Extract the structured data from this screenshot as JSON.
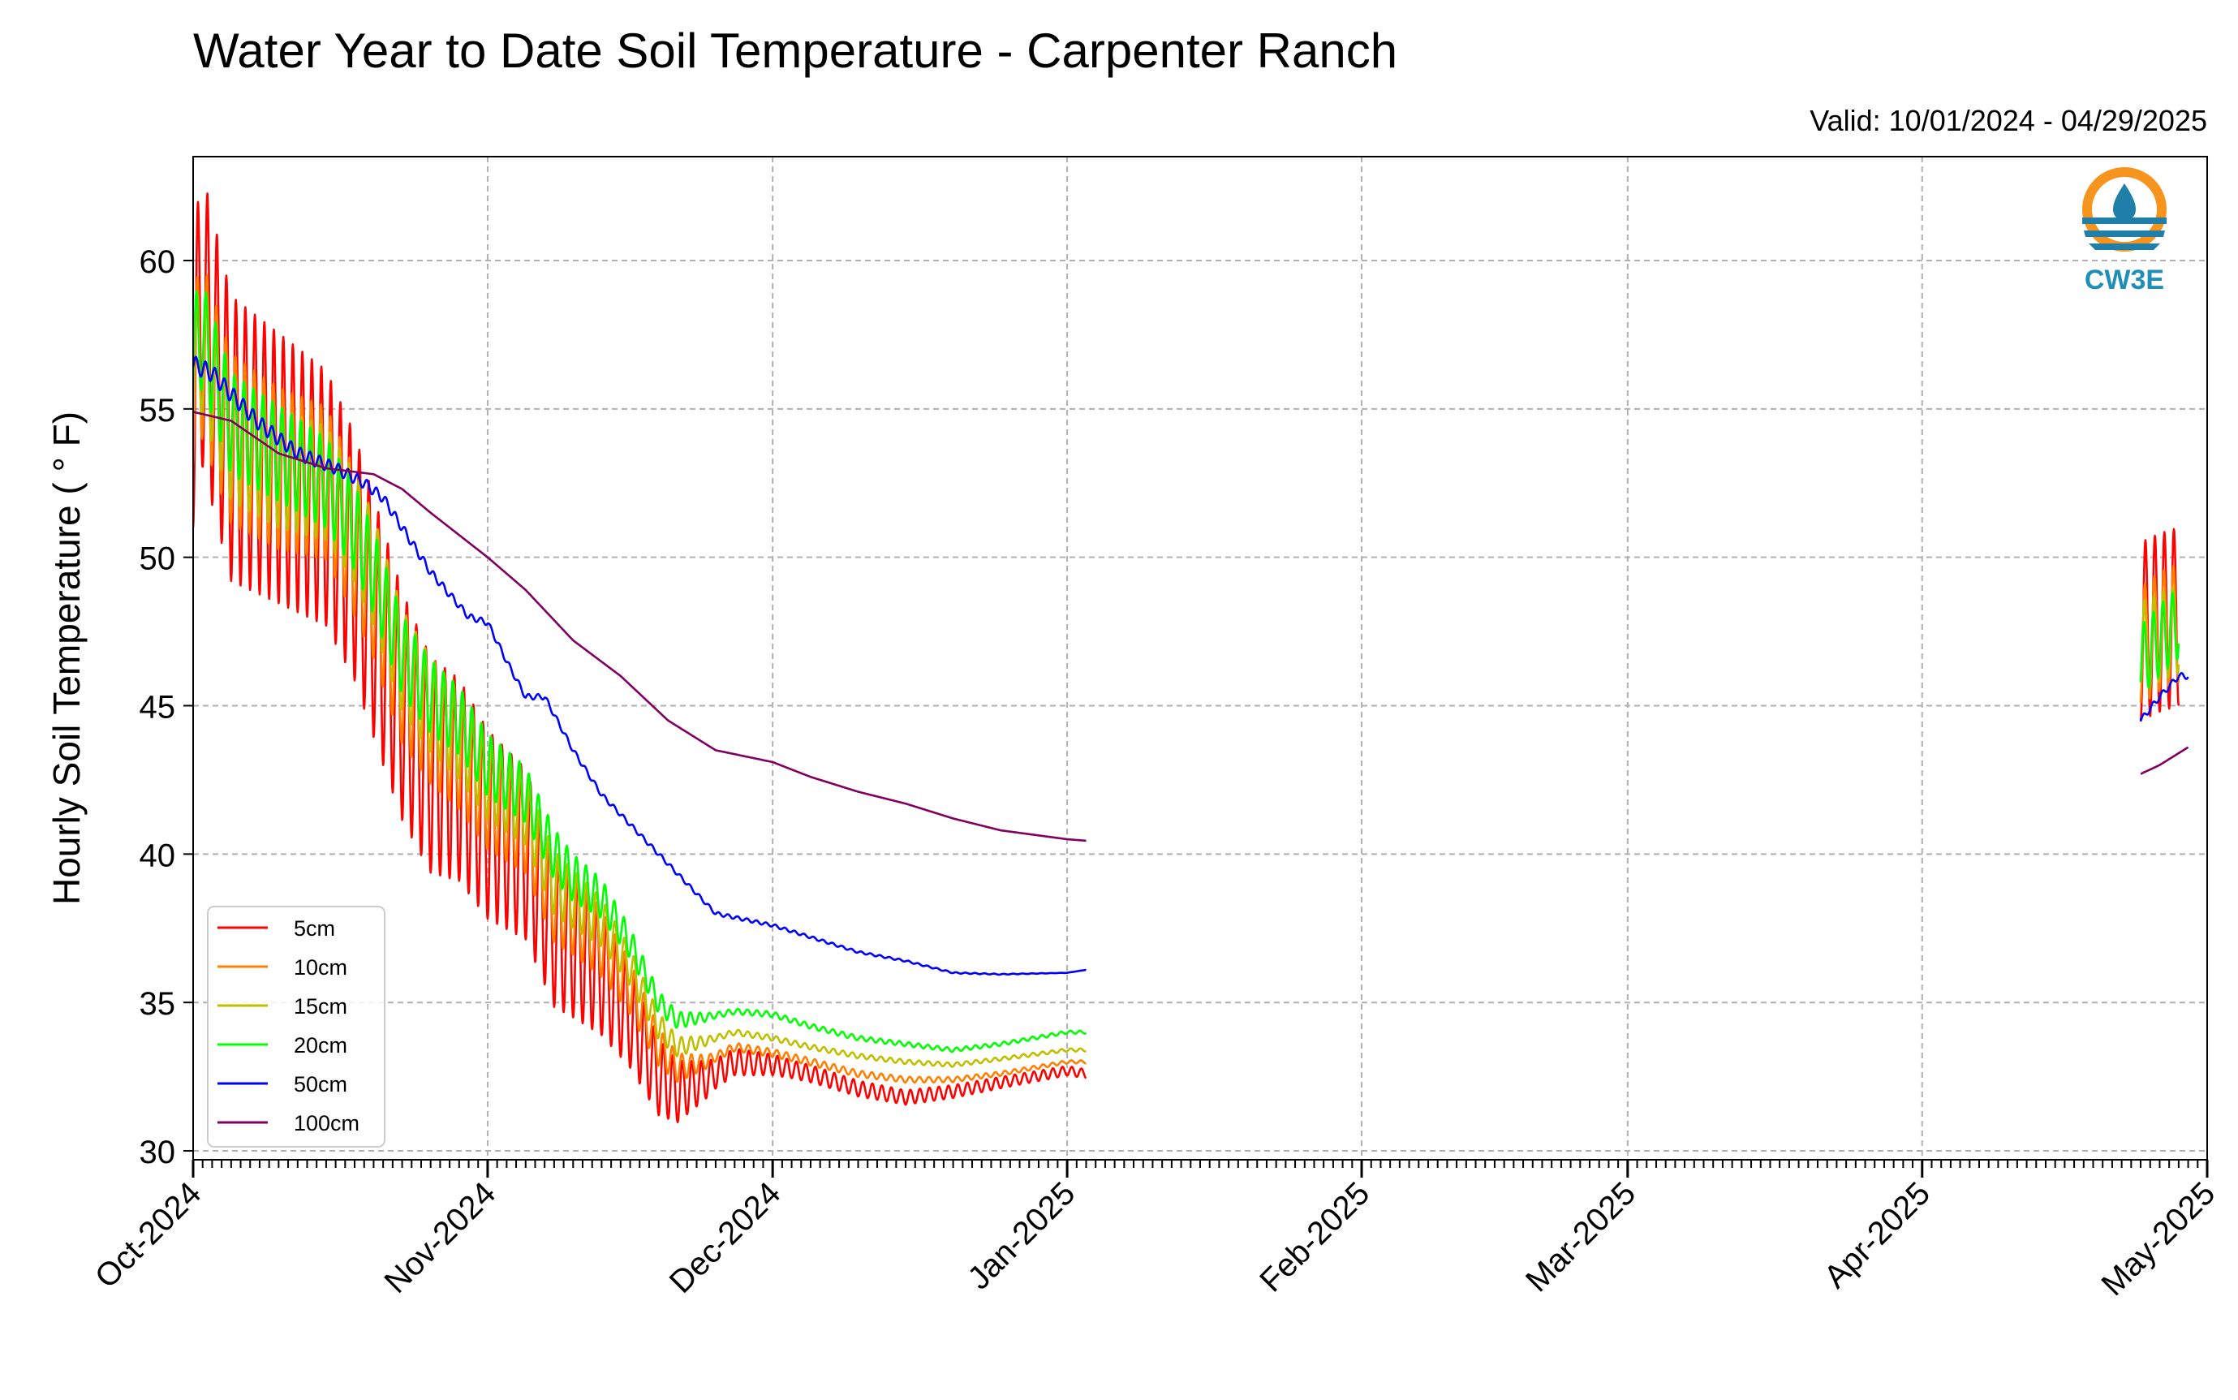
{
  "chart_data": {
    "type": "line",
    "title": "Water Year to Date Soil Temperature - Carpenter Ranch",
    "subtitle": "Valid: 10/01/2024 - 04/29/2025",
    "ylabel": "Hourly Soil Temperature ( ° F)",
    "xlabel": "",
    "ylim": [
      29.7,
      63.5
    ],
    "xlim": [
      "2024-10-01",
      "2025-05-01"
    ],
    "y_ticks": [
      30,
      35,
      40,
      45,
      50,
      55,
      60
    ],
    "x_ticks": [
      "2024-10-01",
      "2024-11-01",
      "2024-12-01",
      "2025-01-01",
      "2025-02-01",
      "2025-03-01",
      "2025-04-01",
      "2025-05-01"
    ],
    "x_tick_labels": [
      "Oct-2024",
      "Nov-2024",
      "Dec-2024",
      "Jan-2025",
      "Feb-2025",
      "Mar-2025",
      "Apr-2025",
      "May-2025"
    ],
    "grid": true,
    "legend_position": "bottom-left",
    "logo_text": "CW3E",
    "series": [
      {
        "name": "5cm",
        "color": "#ff0000",
        "points": [
          [
            "2024-10-01",
            56
          ],
          [
            "2024-10-02",
            58
          ],
          [
            "2024-10-05",
            54
          ],
          [
            "2024-10-10",
            53
          ],
          [
            "2024-10-15",
            52
          ],
          [
            "2024-10-18",
            50
          ],
          [
            "2024-10-20",
            48
          ],
          [
            "2024-10-23",
            45
          ],
          [
            "2024-10-26",
            43
          ],
          [
            "2024-10-29",
            42.5
          ],
          [
            "2024-11-01",
            41
          ],
          [
            "2024-11-03",
            40.5
          ],
          [
            "2024-11-05",
            40
          ],
          [
            "2024-11-08",
            37.5
          ],
          [
            "2024-11-10",
            37
          ],
          [
            "2024-11-13",
            36
          ],
          [
            "2024-11-16",
            34.5
          ],
          [
            "2024-11-19",
            32.5
          ],
          [
            "2024-11-21",
            32
          ],
          [
            "2024-11-24",
            32.4
          ],
          [
            "2024-11-27",
            33
          ],
          [
            "2024-12-01",
            32.9
          ],
          [
            "2024-12-05",
            32.6
          ],
          [
            "2024-12-10",
            32.1
          ],
          [
            "2024-12-15",
            31.8
          ],
          [
            "2024-12-20",
            32
          ],
          [
            "2024-12-25",
            32.3
          ],
          [
            "2025-01-01",
            32.7
          ],
          [
            "2025-01-03",
            32.6
          ]
        ],
        "amplitude": [
          [
            0,
            5
          ],
          [
            20,
            4
          ],
          [
            40,
            2.5
          ],
          [
            55,
            0.5
          ],
          [
            63,
            0.3
          ],
          [
            94,
            0.15
          ]
        ],
        "points_late": [
          [
            "2025-04-24",
            47.5
          ],
          [
            "2025-04-26",
            47.8
          ],
          [
            "2025-04-28",
            48
          ]
        ],
        "amplitude_late": 3
      },
      {
        "name": "10cm",
        "color": "#ff8000",
        "points": [
          [
            "2024-10-01",
            56
          ],
          [
            "2024-10-02",
            57
          ],
          [
            "2024-10-05",
            54
          ],
          [
            "2024-10-10",
            53
          ],
          [
            "2024-10-15",
            52.5
          ],
          [
            "2024-10-18",
            50.5
          ],
          [
            "2024-10-20",
            49
          ],
          [
            "2024-10-23",
            46
          ],
          [
            "2024-10-26",
            44.5
          ],
          [
            "2024-10-29",
            43.5
          ],
          [
            "2024-11-01",
            42
          ],
          [
            "2024-11-03",
            41.5
          ],
          [
            "2024-11-05",
            41
          ],
          [
            "2024-11-08",
            38.5
          ],
          [
            "2024-11-10",
            38
          ],
          [
            "2024-11-13",
            37
          ],
          [
            "2024-11-16",
            35.5
          ],
          [
            "2024-11-19",
            33.5
          ],
          [
            "2024-11-21",
            32.8
          ],
          [
            "2024-11-24",
            33
          ],
          [
            "2024-11-27",
            33.5
          ],
          [
            "2024-12-01",
            33.3
          ],
          [
            "2024-12-05",
            33
          ],
          [
            "2024-12-10",
            32.6
          ],
          [
            "2024-12-15",
            32.4
          ],
          [
            "2024-12-20",
            32.4
          ],
          [
            "2024-12-25",
            32.6
          ],
          [
            "2025-01-01",
            33
          ],
          [
            "2025-01-03",
            33
          ]
        ],
        "amplitude": [
          [
            0,
            3
          ],
          [
            20,
            2.4
          ],
          [
            40,
            1.4
          ],
          [
            55,
            0.15
          ],
          [
            94,
            0.05
          ]
        ],
        "points_late": [
          [
            "2025-04-24",
            47
          ],
          [
            "2025-04-26",
            47.5
          ],
          [
            "2025-04-28",
            47.8
          ]
        ],
        "amplitude_late": 2
      },
      {
        "name": "15cm",
        "color": "#bfbf00",
        "points": [
          [
            "2024-10-01",
            56.5
          ],
          [
            "2024-10-02",
            57
          ],
          [
            "2024-10-05",
            54
          ],
          [
            "2024-10-10",
            53
          ],
          [
            "2024-10-15",
            52.5
          ],
          [
            "2024-10-18",
            51
          ],
          [
            "2024-10-20",
            49.5
          ],
          [
            "2024-10-23",
            46.5
          ],
          [
            "2024-10-26",
            45
          ],
          [
            "2024-10-29",
            44
          ],
          [
            "2024-11-01",
            42.5
          ],
          [
            "2024-11-03",
            42
          ],
          [
            "2024-11-05",
            41.5
          ],
          [
            "2024-11-08",
            39
          ],
          [
            "2024-11-10",
            38.5
          ],
          [
            "2024-11-13",
            37.7
          ],
          [
            "2024-11-16",
            36.2
          ],
          [
            "2024-11-19",
            34.2
          ],
          [
            "2024-11-21",
            33.5
          ],
          [
            "2024-11-24",
            33.7
          ],
          [
            "2024-11-27",
            34
          ],
          [
            "2024-12-01",
            33.8
          ],
          [
            "2024-12-05",
            33.5
          ],
          [
            "2024-12-10",
            33.2
          ],
          [
            "2024-12-15",
            33
          ],
          [
            "2024-12-20",
            32.9
          ],
          [
            "2024-12-25",
            33.1
          ],
          [
            "2025-01-01",
            33.4
          ],
          [
            "2025-01-03",
            33.4
          ]
        ],
        "amplitude": [
          [
            0,
            2.2
          ],
          [
            20,
            1.8
          ],
          [
            40,
            1
          ],
          [
            55,
            0.1
          ],
          [
            94,
            0.05
          ]
        ],
        "points_late": [
          [
            "2025-04-24",
            47
          ],
          [
            "2025-04-26",
            47.3
          ],
          [
            "2025-04-28",
            47.6
          ]
        ],
        "amplitude_late": 1.5
      },
      {
        "name": "20cm",
        "color": "#00ff00",
        "points": [
          [
            "2024-10-01",
            57
          ],
          [
            "2024-10-02",
            57.5
          ],
          [
            "2024-10-05",
            54.5
          ],
          [
            "2024-10-10",
            53.5
          ],
          [
            "2024-10-15",
            52.5
          ],
          [
            "2024-10-18",
            51
          ],
          [
            "2024-10-20",
            49.5
          ],
          [
            "2024-10-23",
            46.7
          ],
          [
            "2024-10-26",
            45.3
          ],
          [
            "2024-10-29",
            44.5
          ],
          [
            "2024-11-01",
            43
          ],
          [
            "2024-11-03",
            42.5
          ],
          [
            "2024-11-05",
            42
          ],
          [
            "2024-11-08",
            40
          ],
          [
            "2024-11-10",
            39.2
          ],
          [
            "2024-11-13",
            38.5
          ],
          [
            "2024-11-16",
            37
          ],
          [
            "2024-11-19",
            35
          ],
          [
            "2024-11-21",
            34.4
          ],
          [
            "2024-11-24",
            34.5
          ],
          [
            "2024-11-27",
            34.7
          ],
          [
            "2024-12-01",
            34.6
          ],
          [
            "2024-12-05",
            34.2
          ],
          [
            "2024-12-10",
            33.8
          ],
          [
            "2024-12-15",
            33.6
          ],
          [
            "2024-12-20",
            33.4
          ],
          [
            "2024-12-25",
            33.6
          ],
          [
            "2025-01-01",
            34
          ],
          [
            "2025-01-03",
            34
          ]
        ],
        "amplitude": [
          [
            0,
            1.8
          ],
          [
            20,
            1.4
          ],
          [
            40,
            0.8
          ],
          [
            55,
            0.1
          ],
          [
            94,
            0.05
          ]
        ],
        "points_late": [
          [
            "2025-04-24",
            46.5
          ],
          [
            "2025-04-26",
            47.2
          ],
          [
            "2025-04-28",
            47.8
          ]
        ],
        "amplitude_late": 1.2
      },
      {
        "name": "50cm",
        "color": "#0000ff",
        "points": [
          [
            "2024-10-01",
            56.5
          ],
          [
            "2024-10-03",
            56.2
          ],
          [
            "2024-10-05",
            55.5
          ],
          [
            "2024-10-08",
            54.5
          ],
          [
            "2024-10-12",
            53.5
          ],
          [
            "2024-10-16",
            53
          ],
          [
            "2024-10-19",
            52.5
          ],
          [
            "2024-10-21",
            52
          ],
          [
            "2024-10-23",
            51
          ],
          [
            "2024-10-26",
            49.5
          ],
          [
            "2024-10-30",
            48
          ],
          [
            "2024-11-01",
            47.8
          ],
          [
            "2024-11-03",
            46.5
          ],
          [
            "2024-11-05",
            45.3
          ],
          [
            "2024-11-07",
            45.3
          ],
          [
            "2024-11-10",
            43.5
          ],
          [
            "2024-11-13",
            42
          ],
          [
            "2024-11-16",
            41
          ],
          [
            "2024-11-19",
            40
          ],
          [
            "2024-11-22",
            39
          ],
          [
            "2024-11-25",
            38
          ],
          [
            "2024-12-01",
            37.6
          ],
          [
            "2024-12-05",
            37.2
          ],
          [
            "2024-12-10",
            36.7
          ],
          [
            "2024-12-15",
            36.4
          ],
          [
            "2024-12-20",
            36
          ],
          [
            "2024-12-25",
            35.95
          ],
          [
            "2025-01-01",
            36
          ],
          [
            "2025-01-03",
            36.1
          ]
        ],
        "amplitude": [
          [
            0,
            0.3
          ],
          [
            30,
            0.1
          ],
          [
            94,
            0
          ]
        ],
        "points_late": [
          [
            "2025-04-24",
            44.5
          ],
          [
            "2025-04-26",
            45.3
          ],
          [
            "2025-04-28",
            46
          ],
          [
            "2025-04-29",
            46
          ]
        ],
        "amplitude_late": 0.1
      },
      {
        "name": "100cm",
        "color": "#800060",
        "points": [
          [
            "2024-10-01",
            54.9
          ],
          [
            "2024-10-05",
            54.6
          ],
          [
            "2024-10-10",
            53.5
          ],
          [
            "2024-10-15",
            53
          ],
          [
            "2024-10-20",
            52.8
          ],
          [
            "2024-10-23",
            52.3
          ],
          [
            "2024-10-26",
            51.5
          ],
          [
            "2024-10-30",
            50.5
          ],
          [
            "2024-11-01",
            50
          ],
          [
            "2024-11-05",
            48.9
          ],
          [
            "2024-11-10",
            47.2
          ],
          [
            "2024-11-15",
            46
          ],
          [
            "2024-11-20",
            44.5
          ],
          [
            "2024-11-25",
            43.5
          ],
          [
            "2024-12-01",
            43.1
          ],
          [
            "2024-12-05",
            42.6
          ],
          [
            "2024-12-10",
            42.1
          ],
          [
            "2024-12-15",
            41.7
          ],
          [
            "2024-12-20",
            41.2
          ],
          [
            "2024-12-25",
            40.8
          ],
          [
            "2025-01-01",
            40.5
          ],
          [
            "2025-01-03",
            40.45
          ]
        ],
        "amplitude": [
          [
            0,
            0
          ],
          [
            94,
            0
          ]
        ],
        "points_late": [
          [
            "2025-04-24",
            42.7
          ],
          [
            "2025-04-26",
            43
          ],
          [
            "2025-04-28",
            43.4
          ],
          [
            "2025-04-29",
            43.6
          ]
        ],
        "amplitude_late": 0
      }
    ]
  }
}
